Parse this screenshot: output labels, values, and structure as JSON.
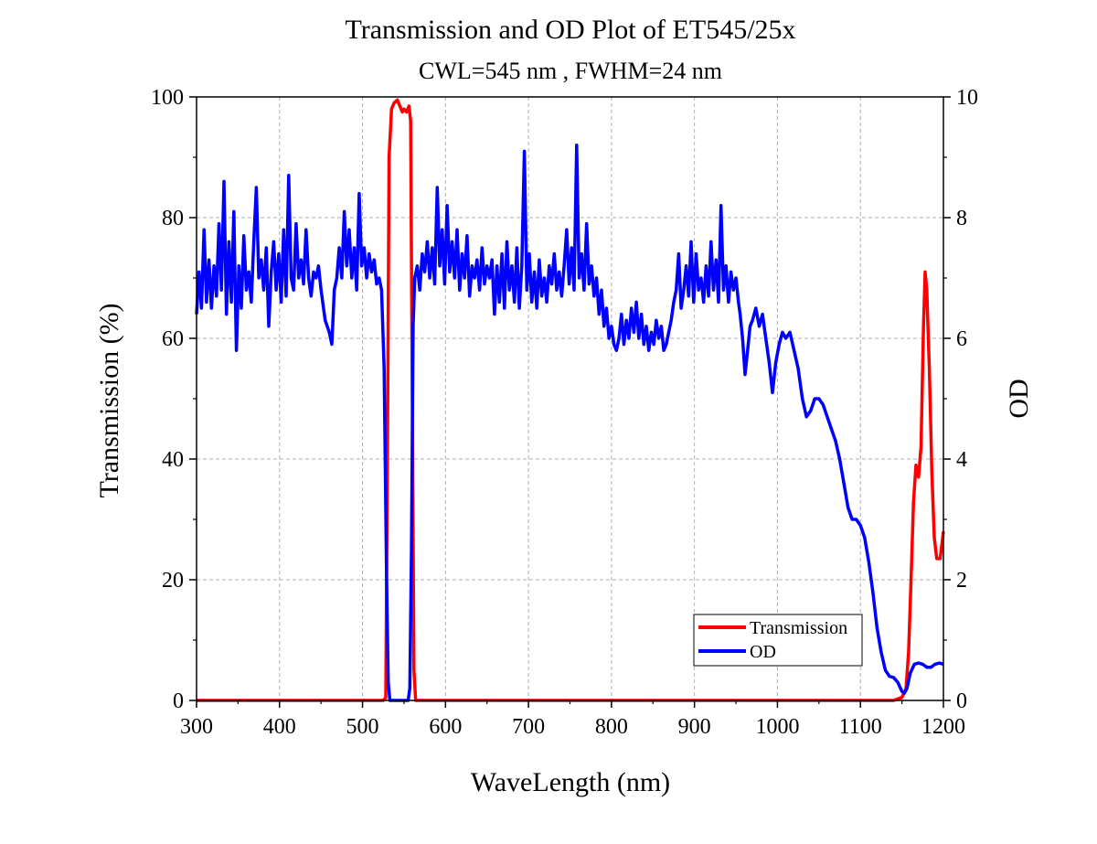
{
  "chart_data": {
    "type": "line",
    "title": "Transmission and OD Plot of ET545/25x",
    "subtitle": "CWL=545 nm , FWHM=24 nm",
    "xlabel": "WaveLength (nm)",
    "ylabel_left": "Transmission (%)",
    "ylabel_right": "OD",
    "xlim": [
      300,
      1200
    ],
    "ylim_left": [
      0,
      100
    ],
    "ylim_right": [
      0,
      10
    ],
    "x_ticks": [
      300,
      400,
      500,
      600,
      700,
      800,
      900,
      1000,
      1100,
      1200
    ],
    "y_left_ticks": [
      0,
      20,
      40,
      60,
      80,
      100
    ],
    "y_right_ticks": [
      0,
      2,
      4,
      6,
      8,
      10
    ],
    "grid": true,
    "legend_position": "bottom-right",
    "series": [
      {
        "name": "Transmission",
        "axis": "left",
        "color": "#ff0000",
        "points": [
          [
            300,
            0
          ],
          [
            525,
            0
          ],
          [
            528,
            0.5
          ],
          [
            530,
            40
          ],
          [
            532,
            90
          ],
          [
            535,
            98
          ],
          [
            538,
            99
          ],
          [
            542,
            99.5
          ],
          [
            545,
            98.5
          ],
          [
            548,
            97.5
          ],
          [
            550,
            98
          ],
          [
            553,
            97.5
          ],
          [
            556,
            98.5
          ],
          [
            558,
            96
          ],
          [
            560,
            50
          ],
          [
            562,
            5
          ],
          [
            564,
            0
          ],
          [
            1140,
            0
          ],
          [
            1150,
            0.5
          ],
          [
            1155,
            2
          ],
          [
            1158,
            8
          ],
          [
            1161,
            20
          ],
          [
            1164,
            33
          ],
          [
            1167,
            39
          ],
          [
            1170,
            37
          ],
          [
            1173,
            42
          ],
          [
            1176,
            62
          ],
          [
            1178,
            71
          ],
          [
            1180,
            68
          ],
          [
            1183,
            55
          ],
          [
            1186,
            38
          ],
          [
            1189,
            27
          ],
          [
            1192,
            23.5
          ],
          [
            1196,
            23.5
          ],
          [
            1200,
            28
          ]
        ]
      },
      {
        "name": "OD",
        "axis": "right",
        "color": "#0000ff",
        "points": [
          [
            300,
            6.4
          ],
          [
            303,
            7.1
          ],
          [
            306,
            6.5
          ],
          [
            309,
            7.8
          ],
          [
            312,
            6.6
          ],
          [
            315,
            7.3
          ],
          [
            318,
            6.5
          ],
          [
            321,
            7.2
          ],
          [
            324,
            6.7
          ],
          [
            327,
            7.9
          ],
          [
            330,
            6.8
          ],
          [
            333,
            8.6
          ],
          [
            336,
            6.4
          ],
          [
            339,
            7.6
          ],
          [
            342,
            6.6
          ],
          [
            345,
            8.1
          ],
          [
            348,
            5.8
          ],
          [
            351,
            7.2
          ],
          [
            354,
            6.5
          ],
          [
            357,
            7.7
          ],
          [
            360,
            6.8
          ],
          [
            363,
            7.1
          ],
          [
            366,
            6.6
          ],
          [
            369,
            7.6
          ],
          [
            372,
            8.5
          ],
          [
            375,
            7.0
          ],
          [
            378,
            7.3
          ],
          [
            381,
            6.8
          ],
          [
            384,
            7.5
          ],
          [
            387,
            6.2
          ],
          [
            390,
            7.1
          ],
          [
            393,
            7.6
          ],
          [
            396,
            6.8
          ],
          [
            399,
            7.4
          ],
          [
            402,
            6.6
          ],
          [
            405,
            7.8
          ],
          [
            408,
            6.7
          ],
          [
            411,
            8.7
          ],
          [
            414,
            7.0
          ],
          [
            417,
            6.8
          ],
          [
            420,
            7.9
          ],
          [
            423,
            7.0
          ],
          [
            426,
            7.3
          ],
          [
            429,
            6.9
          ],
          [
            432,
            7.8
          ],
          [
            435,
            7.0
          ],
          [
            438,
            6.7
          ],
          [
            441,
            7.1
          ],
          [
            444,
            7.0
          ],
          [
            447,
            7.2
          ],
          [
            450,
            6.8
          ],
          [
            455,
            6.3
          ],
          [
            460,
            6.1
          ],
          [
            463,
            5.9
          ],
          [
            466,
            6.8
          ],
          [
            469,
            7.0
          ],
          [
            472,
            7.5
          ],
          [
            475,
            7.0
          ],
          [
            478,
            8.1
          ],
          [
            481,
            7.2
          ],
          [
            484,
            7.8
          ],
          [
            487,
            7.0
          ],
          [
            490,
            7.5
          ],
          [
            493,
            6.8
          ],
          [
            496,
            8.4
          ],
          [
            499,
            7.2
          ],
          [
            502,
            7.5
          ],
          [
            505,
            7.0
          ],
          [
            508,
            7.4
          ],
          [
            511,
            7.1
          ],
          [
            514,
            7.3
          ],
          [
            517,
            6.9
          ],
          [
            520,
            7.0
          ],
          [
            523,
            6.8
          ],
          [
            526,
            5.5
          ],
          [
            529,
            2.0
          ],
          [
            531,
            0.3
          ],
          [
            533,
            0.0
          ],
          [
            555,
            0.0
          ],
          [
            557,
            0.2
          ],
          [
            559,
            2.5
          ],
          [
            561,
            6.2
          ],
          [
            563,
            7.0
          ],
          [
            566,
            7.2
          ],
          [
            569,
            6.8
          ],
          [
            572,
            7.4
          ],
          [
            575,
            7.1
          ],
          [
            578,
            7.6
          ],
          [
            581,
            7.0
          ],
          [
            584,
            7.5
          ],
          [
            587,
            6.9
          ],
          [
            590,
            8.5
          ],
          [
            593,
            7.2
          ],
          [
            596,
            7.8
          ],
          [
            599,
            6.9
          ],
          [
            602,
            8.2
          ],
          [
            605,
            7.1
          ],
          [
            608,
            7.6
          ],
          [
            611,
            7.0
          ],
          [
            614,
            7.8
          ],
          [
            617,
            6.8
          ],
          [
            620,
            7.4
          ],
          [
            623,
            7.0
          ],
          [
            626,
            7.7
          ],
          [
            629,
            6.7
          ],
          [
            632,
            7.2
          ],
          [
            635,
            7.0
          ],
          [
            638,
            7.3
          ],
          [
            641,
            6.8
          ],
          [
            644,
            7.5
          ],
          [
            647,
            6.9
          ],
          [
            650,
            7.2
          ],
          [
            653,
            7.0
          ],
          [
            656,
            7.3
          ],
          [
            659,
            6.4
          ],
          [
            662,
            7.2
          ],
          [
            665,
            6.6
          ],
          [
            668,
            7.4
          ],
          [
            671,
            6.5
          ],
          [
            674,
            7.6
          ],
          [
            677,
            6.8
          ],
          [
            680,
            7.2
          ],
          [
            683,
            6.6
          ],
          [
            686,
            7.5
          ],
          [
            689,
            6.5
          ],
          [
            692,
            7.2
          ],
          [
            695,
            9.1
          ],
          [
            698,
            6.8
          ],
          [
            701,
            7.4
          ],
          [
            704,
            6.6
          ],
          [
            707,
            7.1
          ],
          [
            710,
            6.5
          ],
          [
            713,
            7.3
          ],
          [
            716,
            6.7
          ],
          [
            719,
            7.0
          ],
          [
            722,
            6.6
          ],
          [
            725,
            7.2
          ],
          [
            728,
            6.9
          ],
          [
            731,
            7.4
          ],
          [
            734,
            6.8
          ],
          [
            737,
            7.1
          ],
          [
            740,
            6.7
          ],
          [
            743,
            7.2
          ],
          [
            746,
            7.8
          ],
          [
            749,
            6.9
          ],
          [
            752,
            7.5
          ],
          [
            755,
            6.8
          ],
          [
            758,
            9.2
          ],
          [
            761,
            7.0
          ],
          [
            764,
            7.4
          ],
          [
            767,
            6.8
          ],
          [
            770,
            7.9
          ],
          [
            773,
            6.9
          ],
          [
            776,
            7.2
          ],
          [
            779,
            6.7
          ],
          [
            782,
            7.0
          ],
          [
            785,
            6.4
          ],
          [
            788,
            6.8
          ],
          [
            791,
            6.2
          ],
          [
            794,
            6.5
          ],
          [
            797,
            6.0
          ],
          [
            800,
            6.2
          ],
          [
            803,
            5.9
          ],
          [
            806,
            5.8
          ],
          [
            809,
            6.0
          ],
          [
            812,
            6.4
          ],
          [
            815,
            5.9
          ],
          [
            818,
            6.3
          ],
          [
            821,
            6.0
          ],
          [
            824,
            6.5
          ],
          [
            827,
            6.1
          ],
          [
            830,
            6.6
          ],
          [
            833,
            6.0
          ],
          [
            836,
            6.4
          ],
          [
            839,
            5.9
          ],
          [
            842,
            6.2
          ],
          [
            845,
            5.8
          ],
          [
            848,
            6.1
          ],
          [
            851,
            5.9
          ],
          [
            854,
            6.3
          ],
          [
            857,
            6.0
          ],
          [
            860,
            6.2
          ],
          [
            863,
            5.8
          ],
          [
            866,
            5.9
          ],
          [
            869,
            6.1
          ],
          [
            872,
            6.3
          ],
          [
            875,
            6.6
          ],
          [
            878,
            6.8
          ],
          [
            881,
            7.4
          ],
          [
            884,
            6.5
          ],
          [
            887,
            6.8
          ],
          [
            890,
            7.2
          ],
          [
            893,
            6.7
          ],
          [
            896,
            7.6
          ],
          [
            899,
            6.6
          ],
          [
            902,
            7.4
          ],
          [
            905,
            6.8
          ],
          [
            908,
            7.0
          ],
          [
            911,
            6.6
          ],
          [
            914,
            7.2
          ],
          [
            917,
            6.7
          ],
          [
            920,
            7.6
          ],
          [
            923,
            6.8
          ],
          [
            926,
            7.3
          ],
          [
            929,
            6.6
          ],
          [
            932,
            8.2
          ],
          [
            935,
            6.8
          ],
          [
            938,
            7.2
          ],
          [
            941,
            6.6
          ],
          [
            944,
            7.1
          ],
          [
            947,
            6.8
          ],
          [
            950,
            7.0
          ],
          [
            953,
            6.6
          ],
          [
            955,
            6.4
          ],
          [
            958,
            6.0
          ],
          [
            961,
            5.4
          ],
          [
            964,
            5.8
          ],
          [
            967,
            6.2
          ],
          [
            970,
            6.3
          ],
          [
            974,
            6.5
          ],
          [
            978,
            6.2
          ],
          [
            982,
            6.4
          ],
          [
            986,
            6.0
          ],
          [
            990,
            5.6
          ],
          [
            994,
            5.1
          ],
          [
            998,
            5.6
          ],
          [
            1002,
            5.9
          ],
          [
            1006,
            6.1
          ],
          [
            1010,
            6.0
          ],
          [
            1015,
            6.1
          ],
          [
            1020,
            5.8
          ],
          [
            1025,
            5.5
          ],
          [
            1030,
            5.0
          ],
          [
            1035,
            4.7
          ],
          [
            1040,
            4.8
          ],
          [
            1045,
            5.0
          ],
          [
            1050,
            5.0
          ],
          [
            1055,
            4.9
          ],
          [
            1060,
            4.7
          ],
          [
            1065,
            4.5
          ],
          [
            1070,
            4.3
          ],
          [
            1075,
            4.0
          ],
          [
            1080,
            3.6
          ],
          [
            1085,
            3.2
          ],
          [
            1090,
            3.0
          ],
          [
            1095,
            3.0
          ],
          [
            1100,
            2.9
          ],
          [
            1105,
            2.7
          ],
          [
            1110,
            2.3
          ],
          [
            1115,
            1.8
          ],
          [
            1120,
            1.2
          ],
          [
            1125,
            0.8
          ],
          [
            1130,
            0.5
          ],
          [
            1135,
            0.4
          ],
          [
            1140,
            0.38
          ],
          [
            1145,
            0.3
          ],
          [
            1150,
            0.15
          ],
          [
            1153,
            0.12
          ],
          [
            1156,
            0.2
          ],
          [
            1160,
            0.45
          ],
          [
            1165,
            0.6
          ],
          [
            1170,
            0.62
          ],
          [
            1175,
            0.6
          ],
          [
            1180,
            0.55
          ],
          [
            1185,
            0.55
          ],
          [
            1190,
            0.6
          ],
          [
            1195,
            0.62
          ],
          [
            1200,
            0.6
          ]
        ]
      }
    ]
  }
}
